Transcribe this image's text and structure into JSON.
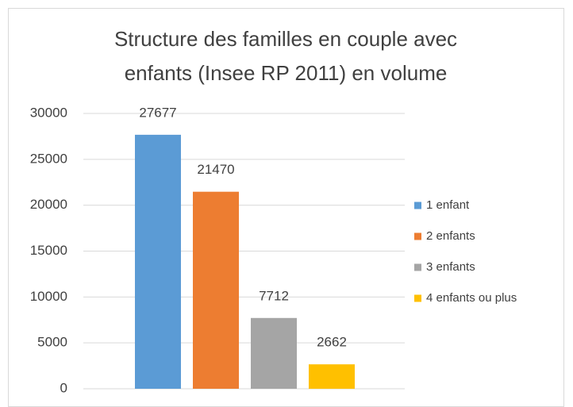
{
  "chart_data": {
    "type": "bar",
    "title": "Structure des familles en couple avec enfants (Insee RP 2011) en volume",
    "series": [
      {
        "name": "1 enfant",
        "color": "#5b9bd5",
        "values": [
          27677
        ]
      },
      {
        "name": "2 enfants",
        "color": "#ed7d31",
        "values": [
          21470
        ]
      },
      {
        "name": "3 enfants",
        "color": "#a5a5a5",
        "values": [
          7712
        ]
      },
      {
        "name": "4 enfants ou plus",
        "color": "#ffc000",
        "values": [
          2662
        ]
      }
    ],
    "ylim": [
      0,
      30000
    ],
    "yticks": [
      0,
      5000,
      10000,
      15000,
      20000,
      25000,
      30000
    ],
    "grid": true,
    "legend": "right"
  }
}
